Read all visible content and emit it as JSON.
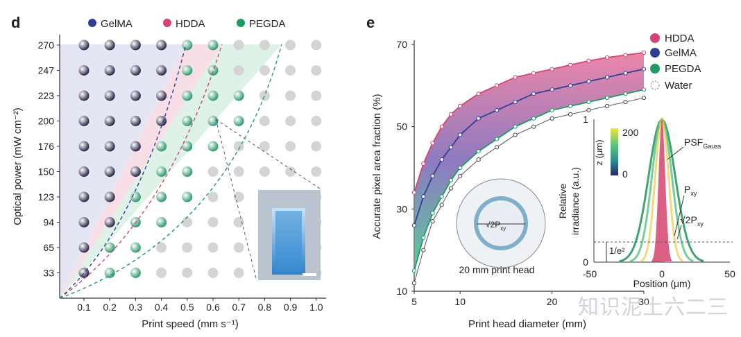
{
  "watermark": "知识泥土六二三",
  "chart_data": [
    {
      "panel": "d",
      "type": "scatter",
      "xlabel": "Print speed (mm s⁻¹)",
      "ylabel": "Optical power (mW cm⁻²)",
      "xticks": [
        "0.1",
        "0.2",
        "0.3",
        "0.4",
        "0.5",
        "0.6",
        "0.7",
        "0.8",
        "0.9",
        "1.0"
      ],
      "yticks": [
        "270",
        "247",
        "223",
        "200",
        "176",
        "150",
        "123",
        "94",
        "65",
        "33"
      ],
      "legend": [
        "GelMA",
        "HDDA",
        "PEGDA"
      ],
      "colors": {
        "GelMA": "#2e3f93",
        "HDDA": "#d6436e",
        "PEGDA": "#1e9a63",
        "filled": "#2b2748",
        "mixed": "#3aa577",
        "empty": "#d3d3d3"
      },
      "filled_up_to_column": [
        3,
        3,
        3,
        3,
        2,
        2,
        1,
        1,
        0,
        0
      ],
      "mixed_up_to_column": [
        5,
        5,
        6,
        6,
        5,
        4,
        4,
        3,
        2,
        2
      ]
    },
    {
      "panel": "e",
      "type": "line",
      "xlabel": "Print head diameter (mm)",
      "ylabel": "Accurate pixel area fraction (%)",
      "xticks": [
        "5",
        "10",
        "20",
        "30"
      ],
      "yticks": [
        "70",
        "50",
        "30",
        "10"
      ],
      "xlim": [
        5,
        30
      ],
      "ylim": [
        10,
        70
      ],
      "legend": [
        "HDDA",
        "GelMA",
        "PEGDA",
        "Water"
      ],
      "series": [
        {
          "name": "HDDA",
          "color": "#d6436e",
          "x": [
            5,
            6,
            7,
            8,
            9,
            10,
            12,
            14,
            16,
            18,
            20,
            22,
            24,
            26,
            28,
            30
          ],
          "values": [
            34,
            41,
            46,
            50,
            53,
            55,
            58,
            60,
            62,
            63,
            64,
            65,
            66,
            66.8,
            67.4,
            68
          ]
        },
        {
          "name": "GelMA",
          "color": "#2e3f93",
          "x": [
            5,
            6,
            7,
            8,
            9,
            10,
            12,
            14,
            16,
            18,
            20,
            22,
            24,
            26,
            28,
            30
          ],
          "values": [
            26,
            33,
            38,
            42,
            45,
            48,
            52,
            54,
            56,
            58,
            59,
            60,
            61,
            62,
            63,
            64
          ]
        },
        {
          "name": "PEGDA",
          "color": "#1e9a63",
          "x": [
            5,
            6,
            7,
            8,
            9,
            10,
            12,
            14,
            16,
            18,
            20,
            22,
            24,
            26,
            28,
            30
          ],
          "values": [
            15,
            23,
            29,
            33,
            37,
            40,
            44,
            47,
            50,
            52,
            54,
            55,
            56,
            57,
            58,
            59
          ]
        },
        {
          "name": "Water",
          "color": "#555555",
          "x": [
            5,
            6,
            7,
            8,
            9,
            10,
            12,
            14,
            16,
            18,
            20,
            22,
            24,
            26,
            28,
            30
          ],
          "values": [
            12,
            20,
            27,
            31,
            35,
            38,
            42,
            45,
            48,
            50,
            52,
            53,
            54,
            55,
            56,
            57
          ]
        }
      ],
      "inset_circle_label": "20 mm print head",
      "inset_sqrt_label": "√2P",
      "inset_sqrt_sub": "xy",
      "inset2": {
        "xlabel": "Position (μm)",
        "ylabel1": "Relative",
        "ylabel2": "irradiance (a.u.)",
        "xticks": [
          "-50",
          "0",
          "50"
        ],
        "yticks": [
          "1",
          "0"
        ],
        "colorbar_label": "z (μm)",
        "colorbar_ticks": [
          "200",
          "0"
        ],
        "psf_label": "PSF",
        "psf_sub": "Gauss",
        "pxy_label": "P",
        "pxy_sub": "xy",
        "sqrt_label": "√2P",
        "sqrt_sub": "xy",
        "e2_label": "1/e²"
      }
    }
  ],
  "panel_labels": [
    "d",
    "e"
  ]
}
